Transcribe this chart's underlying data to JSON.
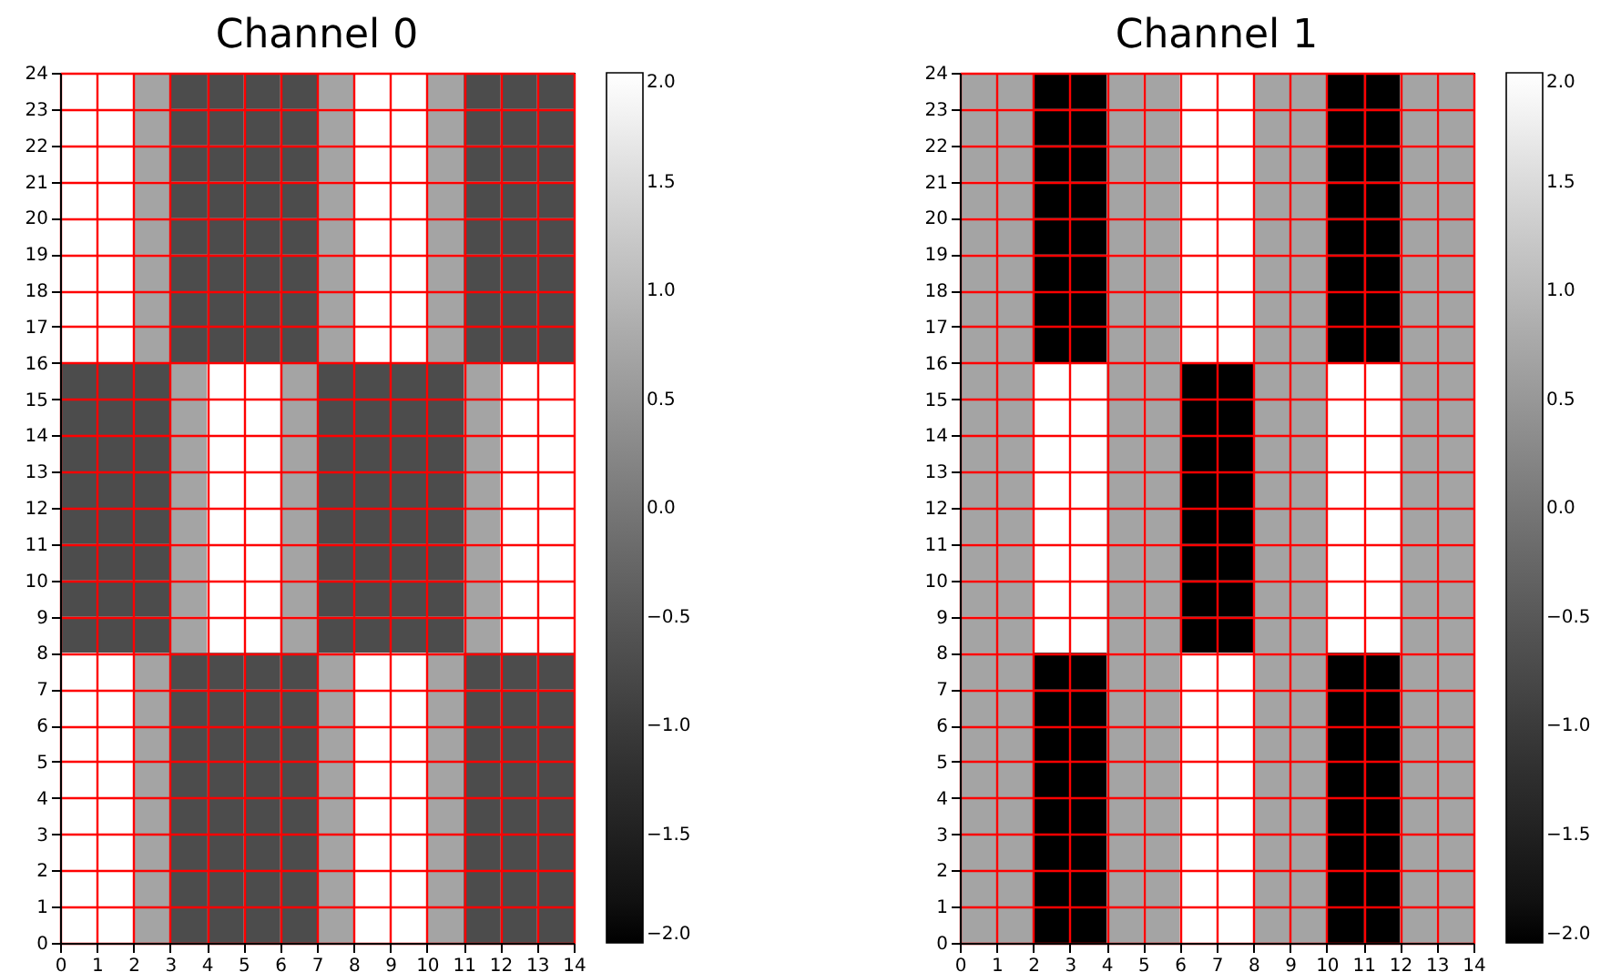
{
  "chart_data": [
    {
      "type": "heatmap",
      "title": "Channel 0",
      "cells": [
        [
          2,
          2,
          0.7,
          -0.7,
          -0.7,
          -0.7,
          -0.7,
          0.7,
          2,
          2,
          0.7,
          -0.7,
          -0.7,
          -0.7
        ],
        [
          2,
          2,
          0.7,
          -0.7,
          -0.7,
          -0.7,
          -0.7,
          0.7,
          2,
          2,
          0.7,
          -0.7,
          -0.7,
          -0.7
        ],
        [
          2,
          2,
          0.7,
          -0.7,
          -0.7,
          -0.7,
          -0.7,
          0.7,
          2,
          2,
          0.7,
          -0.7,
          -0.7,
          -0.7
        ],
        [
          2,
          2,
          0.7,
          -0.7,
          -0.7,
          -0.7,
          -0.7,
          0.7,
          2,
          2,
          0.7,
          -0.7,
          -0.7,
          -0.7
        ],
        [
          2,
          2,
          0.7,
          -0.7,
          -0.7,
          -0.7,
          -0.7,
          0.7,
          2,
          2,
          0.7,
          -0.7,
          -0.7,
          -0.7
        ],
        [
          2,
          2,
          0.7,
          -0.7,
          -0.7,
          -0.7,
          -0.7,
          0.7,
          2,
          2,
          0.7,
          -0.7,
          -0.7,
          -0.7
        ],
        [
          2,
          2,
          0.7,
          -0.7,
          -0.7,
          -0.7,
          -0.7,
          0.7,
          2,
          2,
          0.7,
          -0.7,
          -0.7,
          -0.7
        ],
        [
          2,
          2,
          0.7,
          -0.7,
          -0.7,
          -0.7,
          -0.7,
          0.7,
          2,
          2,
          0.7,
          -0.7,
          -0.7,
          -0.7
        ],
        [
          -0.7,
          -0.7,
          -0.7,
          0.7,
          2,
          2,
          0.7,
          -0.7,
          -0.7,
          -0.7,
          -0.7,
          0.7,
          2,
          2
        ],
        [
          -0.7,
          -0.7,
          -0.7,
          0.7,
          2,
          2,
          0.7,
          -0.7,
          -0.7,
          -0.7,
          -0.7,
          0.7,
          2,
          2
        ],
        [
          -0.7,
          -0.7,
          -0.7,
          0.7,
          2,
          2,
          0.7,
          -0.7,
          -0.7,
          -0.7,
          -0.7,
          0.7,
          2,
          2
        ],
        [
          -0.7,
          -0.7,
          -0.7,
          0.7,
          2,
          2,
          0.7,
          -0.7,
          -0.7,
          -0.7,
          -0.7,
          0.7,
          2,
          2
        ],
        [
          -0.7,
          -0.7,
          -0.7,
          0.7,
          2,
          2,
          0.7,
          -0.7,
          -0.7,
          -0.7,
          -0.7,
          0.7,
          2,
          2
        ],
        [
          -0.7,
          -0.7,
          -0.7,
          0.7,
          2,
          2,
          0.7,
          -0.7,
          -0.7,
          -0.7,
          -0.7,
          0.7,
          2,
          2
        ],
        [
          -0.7,
          -0.7,
          -0.7,
          0.7,
          2,
          2,
          0.7,
          -0.7,
          -0.7,
          -0.7,
          -0.7,
          0.7,
          2,
          2
        ],
        [
          -0.7,
          -0.7,
          -0.7,
          0.7,
          2,
          2,
          0.7,
          -0.7,
          -0.7,
          -0.7,
          -0.7,
          0.7,
          2,
          2
        ],
        [
          2,
          2,
          0.7,
          -0.7,
          -0.7,
          -0.7,
          -0.7,
          0.7,
          2,
          2,
          0.7,
          -0.7,
          -0.7,
          -0.7
        ],
        [
          2,
          2,
          0.7,
          -0.7,
          -0.7,
          -0.7,
          -0.7,
          0.7,
          2,
          2,
          0.7,
          -0.7,
          -0.7,
          -0.7
        ],
        [
          2,
          2,
          0.7,
          -0.7,
          -0.7,
          -0.7,
          -0.7,
          0.7,
          2,
          2,
          0.7,
          -0.7,
          -0.7,
          -0.7
        ],
        [
          2,
          2,
          0.7,
          -0.7,
          -0.7,
          -0.7,
          -0.7,
          0.7,
          2,
          2,
          0.7,
          -0.7,
          -0.7,
          -0.7
        ],
        [
          2,
          2,
          0.7,
          -0.7,
          -0.7,
          -0.7,
          -0.7,
          0.7,
          2,
          2,
          0.7,
          -0.7,
          -0.7,
          -0.7
        ],
        [
          2,
          2,
          0.7,
          -0.7,
          -0.7,
          -0.7,
          -0.7,
          0.7,
          2,
          2,
          0.7,
          -0.7,
          -0.7,
          -0.7
        ],
        [
          2,
          2,
          0.7,
          -0.7,
          -0.7,
          -0.7,
          -0.7,
          0.7,
          2,
          2,
          0.7,
          -0.7,
          -0.7,
          -0.7
        ],
        [
          2,
          2,
          0.7,
          -0.7,
          -0.7,
          -0.7,
          -0.7,
          0.7,
          2,
          2,
          0.7,
          -0.7,
          -0.7,
          -0.7
        ]
      ],
      "clim": [
        -2,
        2
      ],
      "cticks": [
        {
          "value": 2,
          "label": "2.0"
        },
        {
          "value": 1.5,
          "label": "1.5"
        },
        {
          "value": 1,
          "label": "1.0"
        },
        {
          "value": 0.5,
          "label": "0.5"
        },
        {
          "value": 0,
          "label": "0.0"
        },
        {
          "value": -0.5,
          "label": "−0.5"
        },
        {
          "value": -1,
          "label": "−1.0"
        },
        {
          "value": -1.5,
          "label": "−1.5"
        },
        {
          "value": -2,
          "label": "−2.0"
        }
      ],
      "xlim": [
        0,
        14
      ],
      "xticks": [
        0,
        1,
        2,
        3,
        4,
        5,
        6,
        7,
        8,
        9,
        10,
        11,
        12,
        13,
        14
      ],
      "ylim": [
        0,
        24
      ],
      "yticks": [
        0,
        1,
        2,
        3,
        4,
        5,
        6,
        7,
        8,
        9,
        10,
        11,
        12,
        13,
        14,
        15,
        16,
        17,
        18,
        19,
        20,
        21,
        22,
        23,
        24
      ],
      "grid": true
    },
    {
      "type": "heatmap",
      "title": "Channel 1",
      "cells": [
        [
          0.7,
          0.7,
          -2,
          -2,
          0.7,
          0.7,
          2,
          2,
          0.7,
          0.7,
          -2,
          -2,
          0.7,
          0.7
        ],
        [
          0.7,
          0.7,
          -2,
          -2,
          0.7,
          0.7,
          2,
          2,
          0.7,
          0.7,
          -2,
          -2,
          0.7,
          0.7
        ],
        [
          0.7,
          0.7,
          -2,
          -2,
          0.7,
          0.7,
          2,
          2,
          0.7,
          0.7,
          -2,
          -2,
          0.7,
          0.7
        ],
        [
          0.7,
          0.7,
          -2,
          -2,
          0.7,
          0.7,
          2,
          2,
          0.7,
          0.7,
          -2,
          -2,
          0.7,
          0.7
        ],
        [
          0.7,
          0.7,
          -2,
          -2,
          0.7,
          0.7,
          2,
          2,
          0.7,
          0.7,
          -2,
          -2,
          0.7,
          0.7
        ],
        [
          0.7,
          0.7,
          -2,
          -2,
          0.7,
          0.7,
          2,
          2,
          0.7,
          0.7,
          -2,
          -2,
          0.7,
          0.7
        ],
        [
          0.7,
          0.7,
          -2,
          -2,
          0.7,
          0.7,
          2,
          2,
          0.7,
          0.7,
          -2,
          -2,
          0.7,
          0.7
        ],
        [
          0.7,
          0.7,
          -2,
          -2,
          0.7,
          0.7,
          2,
          2,
          0.7,
          0.7,
          -2,
          -2,
          0.7,
          0.7
        ],
        [
          0.7,
          0.7,
          2,
          2,
          0.7,
          0.7,
          -2,
          -2,
          0.7,
          0.7,
          2,
          2,
          0.7,
          0.7
        ],
        [
          0.7,
          0.7,
          2,
          2,
          0.7,
          0.7,
          -2,
          -2,
          0.7,
          0.7,
          2,
          2,
          0.7,
          0.7
        ],
        [
          0.7,
          0.7,
          2,
          2,
          0.7,
          0.7,
          -2,
          -2,
          0.7,
          0.7,
          2,
          2,
          0.7,
          0.7
        ],
        [
          0.7,
          0.7,
          2,
          2,
          0.7,
          0.7,
          -2,
          -2,
          0.7,
          0.7,
          2,
          2,
          0.7,
          0.7
        ],
        [
          0.7,
          0.7,
          2,
          2,
          0.7,
          0.7,
          -2,
          -2,
          0.7,
          0.7,
          2,
          2,
          0.7,
          0.7
        ],
        [
          0.7,
          0.7,
          2,
          2,
          0.7,
          0.7,
          -2,
          -2,
          0.7,
          0.7,
          2,
          2,
          0.7,
          0.7
        ],
        [
          0.7,
          0.7,
          2,
          2,
          0.7,
          0.7,
          -2,
          -2,
          0.7,
          0.7,
          2,
          2,
          0.7,
          0.7
        ],
        [
          0.7,
          0.7,
          2,
          2,
          0.7,
          0.7,
          -2,
          -2,
          0.7,
          0.7,
          2,
          2,
          0.7,
          0.7
        ],
        [
          0.7,
          0.7,
          -2,
          -2,
          0.7,
          0.7,
          2,
          2,
          0.7,
          0.7,
          -2,
          -2,
          0.7,
          0.7
        ],
        [
          0.7,
          0.7,
          -2,
          -2,
          0.7,
          0.7,
          2,
          2,
          0.7,
          0.7,
          -2,
          -2,
          0.7,
          0.7
        ],
        [
          0.7,
          0.7,
          -2,
          -2,
          0.7,
          0.7,
          2,
          2,
          0.7,
          0.7,
          -2,
          -2,
          0.7,
          0.7
        ],
        [
          0.7,
          0.7,
          -2,
          -2,
          0.7,
          0.7,
          2,
          2,
          0.7,
          0.7,
          -2,
          -2,
          0.7,
          0.7
        ],
        [
          0.7,
          0.7,
          -2,
          -2,
          0.7,
          0.7,
          2,
          2,
          0.7,
          0.7,
          -2,
          -2,
          0.7,
          0.7
        ],
        [
          0.7,
          0.7,
          -2,
          -2,
          0.7,
          0.7,
          2,
          2,
          0.7,
          0.7,
          -2,
          -2,
          0.7,
          0.7
        ],
        [
          0.7,
          0.7,
          -2,
          -2,
          0.7,
          0.7,
          2,
          2,
          0.7,
          0.7,
          -2,
          -2,
          0.7,
          0.7
        ],
        [
          0.7,
          0.7,
          -2,
          -2,
          0.7,
          0.7,
          2,
          2,
          0.7,
          0.7,
          -2,
          -2,
          0.7,
          0.7
        ]
      ],
      "clim": [
        -2,
        2
      ],
      "cticks": [
        {
          "value": 2,
          "label": "2.0"
        },
        {
          "value": 1.5,
          "label": "1.5"
        },
        {
          "value": 1,
          "label": "1.0"
        },
        {
          "value": 0.5,
          "label": "0.5"
        },
        {
          "value": 0,
          "label": "0.0"
        },
        {
          "value": -0.5,
          "label": "−0.5"
        },
        {
          "value": -1,
          "label": "−1.0"
        },
        {
          "value": -1.5,
          "label": "−1.5"
        },
        {
          "value": -2,
          "label": "−2.0"
        }
      ],
      "xlim": [
        0,
        14
      ],
      "xticks": [
        0,
        1,
        2,
        3,
        4,
        5,
        6,
        7,
        8,
        9,
        10,
        11,
        12,
        13,
        14
      ],
      "ylim": [
        0,
        24
      ],
      "yticks": [
        0,
        1,
        2,
        3,
        4,
        5,
        6,
        7,
        8,
        9,
        10,
        11,
        12,
        13,
        14,
        15,
        16,
        17,
        18,
        19,
        20,
        21,
        22,
        23,
        24
      ],
      "grid": true
    }
  ]
}
